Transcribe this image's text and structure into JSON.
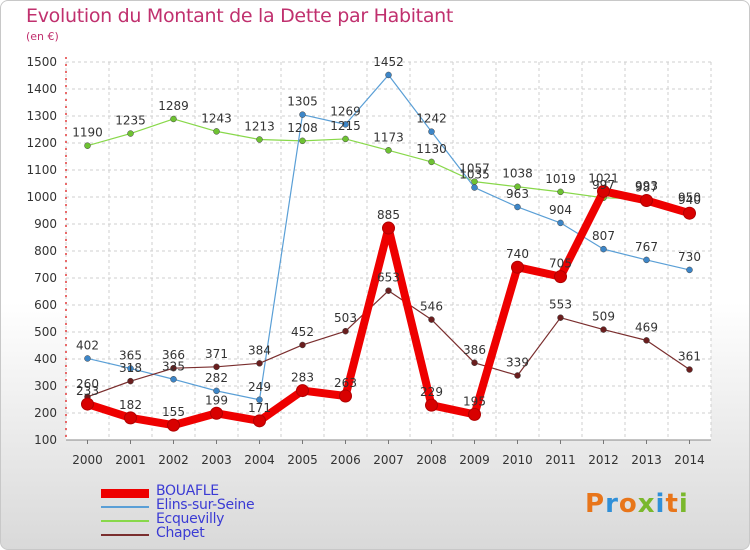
{
  "title": "Evolution du Montant de la Dette par Habitant",
  "subtitle": "(en €)",
  "logo": {
    "text": "Proxiti",
    "colors": [
      "#e8751a",
      "#2f8fd8",
      "#e8751a",
      "#7ab82c",
      "#2f8fd8",
      "#e8751a",
      "#7ab82c"
    ]
  },
  "chart_data": {
    "type": "line",
    "x": [
      "2000",
      "2001",
      "2002",
      "2003",
      "2004",
      "2005",
      "2006",
      "2007",
      "2008",
      "2009",
      "2010",
      "2011",
      "2012",
      "2013",
      "2014"
    ],
    "ylim": [
      100,
      1500
    ],
    "yticks": [
      100,
      200,
      300,
      400,
      500,
      600,
      700,
      800,
      900,
      1000,
      1100,
      1200,
      1300,
      1400,
      1500
    ],
    "grid": true,
    "legend_position": "bottom-left",
    "series": [
      {
        "name": "Ecquevilly",
        "color": "#88d84a",
        "marker": "#6ec232",
        "values": [
          1190,
          1235,
          1289,
          1243,
          1213,
          1208,
          1215,
          1173,
          1130,
          1057,
          1038,
          1019,
          997,
          993,
          950
        ]
      },
      {
        "name": "Elins-sur-Seine",
        "color": "#5a9fd6",
        "marker": "#3d86c8",
        "values": [
          402,
          365,
          325,
          282,
          249,
          1305,
          1269,
          1452,
          1242,
          1035,
          963,
          904,
          807,
          767,
          730
        ]
      },
      {
        "name": "Chapet",
        "color": "#7a2e2e",
        "marker": "#6a1e1e",
        "values": [
          260,
          318,
          366,
          371,
          384,
          452,
          503,
          653,
          546,
          386,
          339,
          553,
          509,
          469,
          361
        ]
      },
      {
        "name": "BOUAFLE",
        "color": "#ee0000",
        "marker": "#d80000",
        "values": [
          233,
          182,
          155,
          199,
          171,
          283,
          263,
          885,
          229,
          195,
          740,
          705,
          1021,
          987,
          940
        ]
      }
    ],
    "legend_order": [
      "BOUAFLE",
      "Elins-sur-Seine",
      "Ecquevilly",
      "Chapet"
    ]
  }
}
